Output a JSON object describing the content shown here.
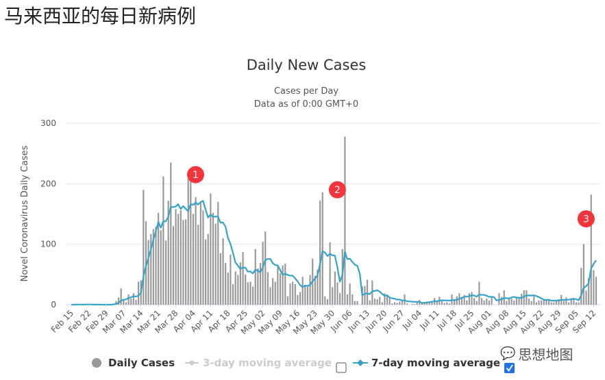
{
  "page_title": "马来西亚的每日新病例",
  "watermark": "思想地图",
  "colors": {
    "bars": "#999999",
    "line": "#33a3cc",
    "annotation": "#f4333a",
    "grid": "#e6e6e6",
    "checkbox": "#1a73e8"
  },
  "chart_data": {
    "type": "bar",
    "title": "Daily New Cases",
    "subtitle_1": "Cases per Day",
    "subtitle_2": "Data as of 0:00 GMT+0",
    "ylabel": "Novel Coronavirus Daily Cases",
    "xlabel": "",
    "ylim": [
      0,
      300
    ],
    "yticks": [
      0,
      100,
      200,
      300
    ],
    "grid": true,
    "start_date": "Feb 15",
    "xticks": [
      "Feb 15",
      "Feb 22",
      "Feb 29",
      "Mar 07",
      "Mar 14",
      "Mar 21",
      "Mar 28",
      "Apr 04",
      "Apr 11",
      "Apr 18",
      "Apr 25",
      "May 02",
      "May 09",
      "May 16",
      "May 23",
      "May 30",
      "Jun 06",
      "Jun 13",
      "Jun 20",
      "Jun 27",
      "Jul 04",
      "Jul 11",
      "Jul 18",
      "Jul 25",
      "Aug 01",
      "Aug 08",
      "Aug 15",
      "Aug 22",
      "Aug 29",
      "Sep 05",
      "Sep 12"
    ],
    "values": [
      0,
      0,
      1,
      0,
      0,
      0,
      1,
      0,
      0,
      0,
      0,
      0,
      0,
      0,
      0,
      0,
      1,
      2,
      6,
      12,
      27,
      9,
      4,
      17,
      10,
      19,
      8,
      38,
      40,
      190,
      138,
      107,
      117,
      125,
      129,
      152,
      123,
      212,
      106,
      172,
      235,
      130,
      158,
      150,
      156,
      140,
      141,
      208,
      210,
      150,
      178,
      132,
      168,
      156,
      108,
      117,
      184,
      152,
      134,
      170,
      85,
      110,
      69,
      53,
      83,
      34,
      55,
      49,
      70,
      87,
      50,
      37,
      38,
      30,
      92,
      60,
      69,
      104,
      121,
      54,
      29,
      44,
      38,
      64,
      52,
      65,
      68,
      14,
      35,
      38,
      34,
      16,
      21,
      46,
      32,
      30,
      49,
      76,
      48,
      58,
      172,
      186,
      14,
      9,
      103,
      29,
      55,
      37,
      19,
      92,
      278,
      17,
      35,
      17,
      6,
      6,
      0,
      30,
      31,
      41,
      7,
      40,
      10,
      9,
      13,
      4,
      19,
      14,
      13,
      2,
      4,
      3,
      5,
      7,
      17,
      2,
      0,
      1,
      1,
      5,
      8,
      3,
      4,
      5,
      3,
      6,
      11,
      7,
      13,
      6,
      3,
      4,
      2,
      17,
      9,
      14,
      19,
      13,
      16,
      7,
      19,
      21,
      11,
      6,
      38,
      11,
      7,
      10,
      7,
      13,
      0,
      0,
      19,
      13,
      24,
      6,
      11,
      10,
      7,
      11,
      13,
      18,
      24,
      24,
      10,
      6,
      14,
      4,
      7,
      7,
      9,
      7,
      9,
      4,
      4,
      7,
      9,
      16,
      6,
      12,
      4,
      10,
      11,
      4,
      4,
      61,
      100,
      23,
      44,
      182,
      57,
      46
    ],
    "annotations": [
      {
        "label": "1",
        "date": "Apr 05",
        "value": 215
      },
      {
        "label": "2",
        "date": "Jun 01",
        "value": 190
      },
      {
        "label": "3",
        "date": "Sep 09",
        "value": 142
      }
    ],
    "legend": {
      "placement": "bottom",
      "items": [
        {
          "name": "Daily Cases",
          "enabled": true
        },
        {
          "name": "3-day moving average",
          "enabled": false,
          "checked": false
        },
        {
          "name": "7-day moving average",
          "enabled": true,
          "checked": true
        }
      ]
    }
  }
}
